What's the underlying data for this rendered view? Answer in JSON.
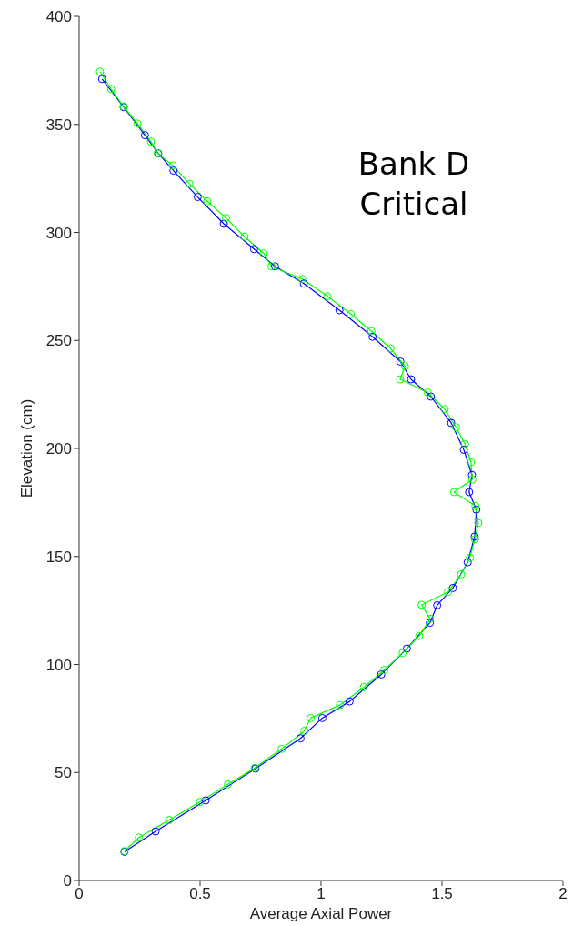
{
  "chart_data": {
    "type": "line",
    "xlabel": "Average Axial Power",
    "ylabel": "Elevation (cm)",
    "xlim": [
      0,
      2
    ],
    "xticks": [
      0,
      0.5,
      1,
      1.5,
      2
    ],
    "ylim": [
      0,
      400
    ],
    "yticks": [
      0,
      50,
      100,
      150,
      200,
      250,
      300,
      350,
      400
    ],
    "marker": "circle",
    "annotations": [
      "Bank D Critical"
    ],
    "series": [
      {
        "color": "#0000ff",
        "x": [
          0.095,
          0.184,
          0.272,
          0.327,
          0.39,
          0.49,
          0.598,
          0.723,
          0.81,
          0.929,
          1.076,
          1.213,
          1.328,
          1.372,
          1.454,
          1.538,
          1.59,
          1.624,
          1.612,
          1.642,
          1.635,
          1.606,
          1.545,
          1.48,
          1.45,
          1.355,
          1.249,
          1.118,
          1.005,
          0.915,
          0.729,
          0.523,
          0.316,
          0.187
        ],
        "values": [
          371,
          358,
          345,
          336.6,
          328.6,
          316.4,
          304,
          292.3,
          284.3,
          276.3,
          264,
          251.7,
          240.2,
          232,
          224,
          211.8,
          199.4,
          187.7,
          179.8,
          171.7,
          159.2,
          147.3,
          135.4,
          127.4,
          119.3,
          107.4,
          95.4,
          82.9,
          75.2,
          65.8,
          51.8,
          37.1,
          22.7,
          13.3
        ]
      },
      {
        "color": "#00ff00",
        "x": [
          0.086,
          0.132,
          0.184,
          0.241,
          0.297,
          0.325,
          0.387,
          0.456,
          0.53,
          0.607,
          0.684,
          0.763,
          0.795,
          0.922,
          1.026,
          1.123,
          1.208,
          1.287,
          1.347,
          1.327,
          1.441,
          1.511,
          1.558,
          1.595,
          1.62,
          1.625,
          1.55,
          1.638,
          1.65,
          1.636,
          1.615,
          1.579,
          1.525,
          1.416,
          1.451,
          1.406,
          1.337,
          1.262,
          1.177,
          1.078,
          0.957,
          0.931,
          0.837,
          0.726,
          0.615,
          0.5,
          0.372,
          0.247,
          0.187
        ],
        "values": [
          374.4,
          366.4,
          358.3,
          350.4,
          342,
          336.6,
          331,
          322.5,
          314.4,
          306.7,
          298,
          290.3,
          284.3,
          278.4,
          270.5,
          262.2,
          254.3,
          246.3,
          238,
          232,
          225.9,
          218.2,
          209.8,
          202,
          193.6,
          185.6,
          179.8,
          173.4,
          165.5,
          158,
          149.4,
          141.7,
          133.6,
          127.6,
          121.1,
          113.2,
          105.3,
          97.5,
          89.5,
          81.2,
          75.2,
          69.3,
          60.9,
          52.1,
          44.5,
          36.4,
          28,
          19.9,
          13.6
        ]
      }
    ]
  }
}
